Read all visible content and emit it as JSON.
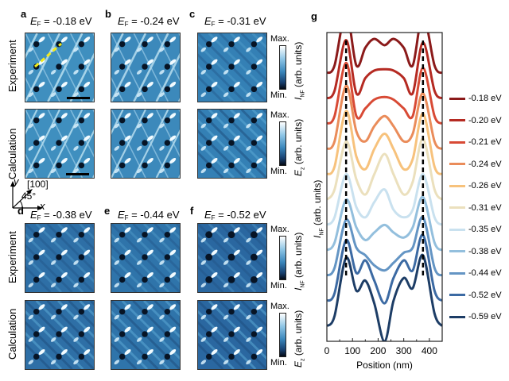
{
  "panels": [
    {
      "id": "a",
      "label": "a",
      "ef": "-0.18 eV",
      "style": "a"
    },
    {
      "id": "b",
      "label": "b",
      "ef": "-0.24 eV",
      "style": "b"
    },
    {
      "id": "c",
      "label": "c",
      "ef": "-0.31 eV",
      "style": "c"
    },
    {
      "id": "d",
      "label": "d",
      "ef": "-0.38 eV",
      "style": "d"
    },
    {
      "id": "e",
      "label": "e",
      "ef": "-0.44 eV",
      "style": "e"
    },
    {
      "id": "f",
      "label": "f",
      "ef": "-0.52 eV",
      "style": "f"
    }
  ],
  "ef_symbol": "E",
  "ef_sub": "F",
  "ef_eq": " = ",
  "row_labels": {
    "experiment": "Experiment",
    "calculation": "Calculation"
  },
  "colorbar": {
    "max": "Max.",
    "min": "Min.",
    "inf_symbol": "I",
    "inf_sub": "NF",
    "ez_symbol": "E",
    "ez_sub": "z",
    "units": " (arb. units)"
  },
  "axes_glyph": {
    "y": "y",
    "x": "x",
    "direction": "[100]",
    "angle": "45°"
  },
  "panel_g_label": "g",
  "chart_data": {
    "type": "line",
    "title": "",
    "xlabel": "Position (nm)",
    "ylabel_symbol": "I",
    "ylabel_sub": "NF",
    "ylabel_units": " (arb. units)",
    "xlim": [
      0,
      450
    ],
    "xticks": [
      0,
      100,
      200,
      300,
      400
    ],
    "ylim": [
      0,
      12.2
    ],
    "y_ticks_shown": false,
    "legend_position": "right",
    "dashed_reference_lines_x": [
      75,
      375
    ],
    "x": [
      0,
      30,
      75,
      115,
      150,
      185,
      225,
      260,
      300,
      335,
      375,
      420,
      450
    ],
    "series": [
      {
        "name": "-0.18 eV",
        "color": "#8b1a1a",
        "offset": 10.6,
        "values": [
          0,
          0.3,
          2.4,
          0.3,
          1.0,
          1.35,
          1.1,
          1.35,
          1.0,
          0.3,
          2.3,
          0.3,
          0.0
        ]
      },
      {
        "name": "-0.20 eV",
        "color": "#b52a22",
        "offset": 9.6,
        "values": [
          0,
          0.3,
          2.3,
          0.2,
          0.8,
          1.1,
          1.15,
          1.1,
          0.8,
          0.2,
          2.2,
          0.3,
          0.0
        ]
      },
      {
        "name": "-0.21 eV",
        "color": "#d84a35",
        "offset": 8.6,
        "values": [
          0,
          0.3,
          2.4,
          0.3,
          0.6,
          0.95,
          1.05,
          0.95,
          0.6,
          0.3,
          2.2,
          0.3,
          0.0
        ]
      },
      {
        "name": "-0.24 eV",
        "color": "#ea8c5a",
        "offset": 7.6,
        "values": [
          0,
          0.3,
          2.5,
          0.7,
          0.3,
          0.9,
          1.3,
          0.9,
          0.3,
          0.6,
          2.2,
          0.3,
          0.0
        ]
      },
      {
        "name": "-0.26 eV",
        "color": "#f7c27c",
        "offset": 6.6,
        "values": [
          0,
          0.3,
          2.5,
          0.7,
          0.2,
          1.0,
          1.6,
          1.0,
          0.2,
          0.6,
          2.4,
          0.3,
          0.0
        ]
      },
      {
        "name": "-0.31 eV",
        "color": "#ebe0bd",
        "offset": 5.6,
        "values": [
          0,
          0.4,
          2.3,
          0.8,
          0.2,
          1.0,
          1.8,
          1.0,
          0.2,
          0.7,
          2.4,
          0.4,
          0.0
        ]
      },
      {
        "name": "-0.35 eV",
        "color": "#c9e1ef",
        "offset": 4.6,
        "values": [
          0,
          0.3,
          2.0,
          0.7,
          0.3,
          0.9,
          1.4,
          0.6,
          0.3,
          0.6,
          2.0,
          0.3,
          0.0
        ]
      },
      {
        "name": "-0.38 eV",
        "color": "#93bfdd",
        "offset": 3.6,
        "values": [
          0,
          0.3,
          2.0,
          0.9,
          0.4,
          0.7,
          1.0,
          0.7,
          0.5,
          0.9,
          2.1,
          0.3,
          0.0
        ]
      },
      {
        "name": "-0.44 eV",
        "color": "#6495c4",
        "offset": 2.6,
        "values": [
          0,
          0.3,
          2.2,
          1.1,
          0.8,
          0.4,
          0.2,
          0.5,
          0.9,
          1.1,
          2.3,
          0.3,
          0.0
        ]
      },
      {
        "name": "-0.52 eV",
        "color": "#3c6aa3",
        "offset": 1.6,
        "values": [
          0,
          0.3,
          2.4,
          1.1,
          1.6,
          0.8,
          -0.1,
          0.9,
          1.6,
          1.2,
          2.6,
          0.4,
          0.0
        ]
      },
      {
        "name": "-0.59 eV",
        "color": "#1d3d66",
        "offset": 0.6,
        "values": [
          0,
          0.4,
          2.7,
          1.4,
          1.8,
          0.9,
          -0.6,
          1.0,
          1.9,
          1.5,
          2.8,
          0.5,
          0.0
        ]
      }
    ]
  }
}
